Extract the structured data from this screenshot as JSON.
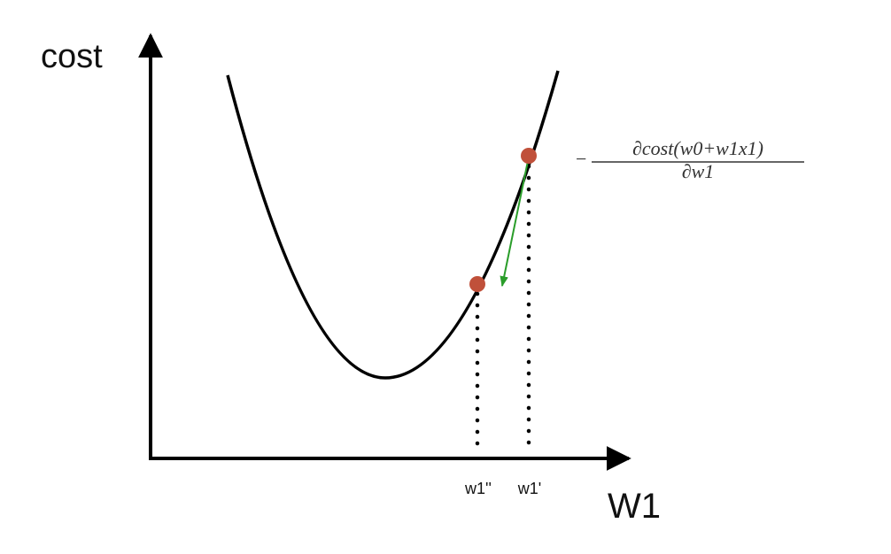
{
  "axes": {
    "y_label": "cost",
    "x_label": "W1"
  },
  "points": [
    {
      "label": "w1''"
    },
    {
      "label": "w1'"
    }
  ],
  "formula": {
    "sign": "−",
    "numerator": "∂cost(w0+w1x1)",
    "denominator": "∂w1"
  }
}
